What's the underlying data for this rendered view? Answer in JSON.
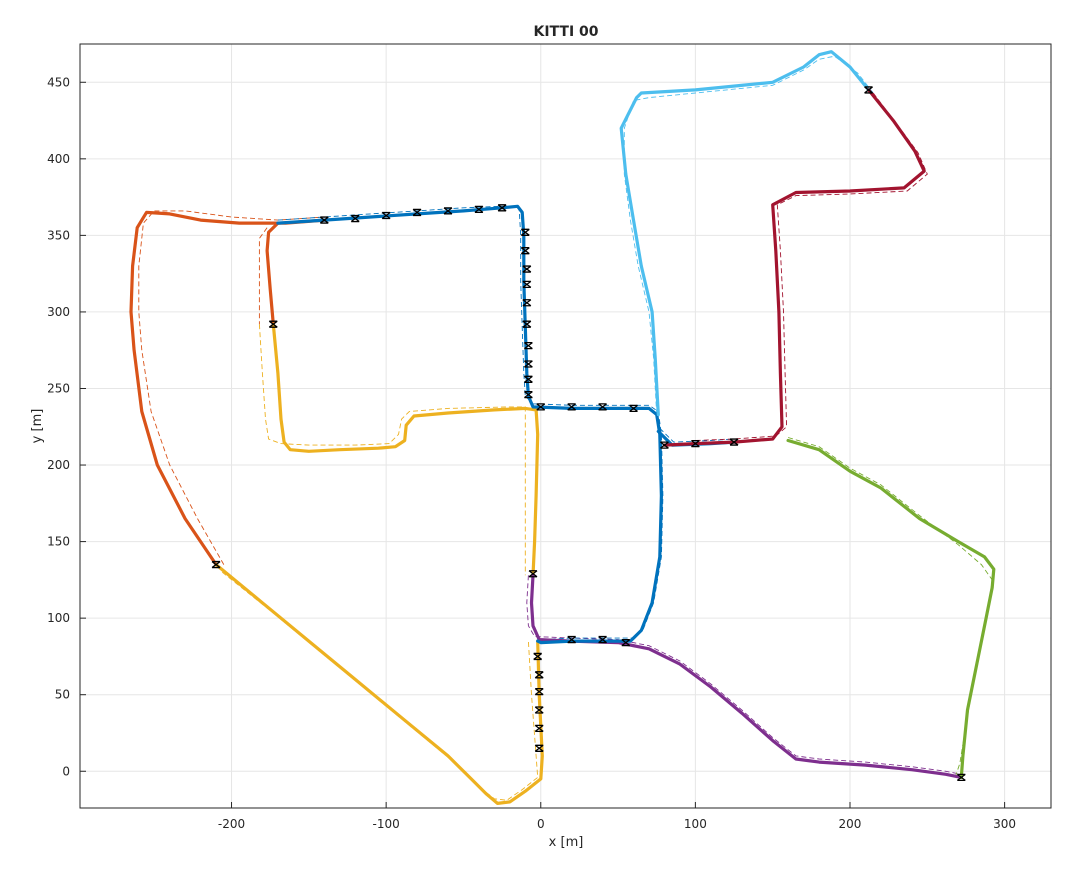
{
  "chart_data": {
    "type": "line",
    "title": "KITTI 00",
    "xlabel": "x [m]",
    "ylabel": "y [m]",
    "xlim": [
      -298,
      330
    ],
    "ylim": [
      -24,
      475
    ],
    "xticks": [
      -200,
      -100,
      0,
      100,
      200,
      300
    ],
    "yticks": [
      0,
      50,
      100,
      150,
      200,
      250,
      300,
      350,
      400,
      450
    ],
    "grid": true,
    "series": [
      {
        "color": "#D95319",
        "points": [
          [
            -210,
            135
          ],
          [
            -230,
            165
          ],
          [
            -248,
            200
          ],
          [
            -258,
            235
          ],
          [
            -263,
            275
          ],
          [
            -265,
            300
          ],
          [
            -264,
            330
          ],
          [
            -261,
            355
          ],
          [
            -255,
            365
          ],
          [
            -240,
            364
          ],
          [
            -220,
            360
          ],
          [
            -195,
            358
          ],
          [
            -165,
            358
          ],
          [
            -140,
            360
          ]
        ],
        "ref": [
          [
            -205,
            135
          ],
          [
            -222,
            165
          ],
          [
            -240,
            200
          ],
          [
            -252,
            235
          ],
          [
            -258,
            275
          ],
          [
            -260,
            300
          ],
          [
            -260,
            330
          ],
          [
            -257,
            358
          ],
          [
            -250,
            366
          ],
          [
            -230,
            366
          ],
          [
            -200,
            362
          ],
          [
            -170,
            360
          ],
          [
            -140,
            362
          ]
        ]
      },
      {
        "color": "#D95319",
        "points": [
          [
            -170,
            358
          ],
          [
            -176,
            352
          ],
          [
            -177,
            340
          ],
          [
            -175,
            315
          ],
          [
            -173,
            292
          ]
        ],
        "ref": [
          [
            -177,
            355
          ],
          [
            -182,
            348
          ],
          [
            -182,
            320
          ],
          [
            -182,
            292
          ]
        ]
      },
      {
        "color": "#EDB120",
        "points": [
          [
            -173,
            292
          ],
          [
            -170,
            260
          ],
          [
            -168,
            230
          ],
          [
            -166,
            215
          ],
          [
            -162,
            210
          ],
          [
            -150,
            209
          ],
          [
            -130,
            210
          ],
          [
            -105,
            211
          ],
          [
            -94,
            212
          ],
          [
            -88,
            216
          ],
          [
            -87,
            226
          ],
          [
            -82,
            232
          ],
          [
            -60,
            234
          ],
          [
            -30,
            236
          ],
          [
            -10,
            237
          ],
          [
            -3,
            236
          ],
          [
            -2,
            220
          ],
          [
            -3,
            180
          ],
          [
            -4,
            150
          ],
          [
            -5,
            128
          ]
        ],
        "ref": [
          [
            -182,
            292
          ],
          [
            -180,
            260
          ],
          [
            -178,
            230
          ],
          [
            -176,
            217
          ],
          [
            -168,
            214
          ],
          [
            -150,
            213
          ],
          [
            -120,
            213
          ],
          [
            -98,
            214
          ],
          [
            -92,
            220
          ],
          [
            -90,
            230
          ],
          [
            -85,
            235
          ],
          [
            -60,
            237
          ],
          [
            -20,
            238
          ],
          [
            -10,
            238
          ],
          [
            -10,
            180
          ],
          [
            -10,
            128
          ]
        ]
      },
      {
        "color": "#EDB120",
        "points": [
          [
            -210,
            135
          ],
          [
            -180,
            110
          ],
          [
            -150,
            85
          ],
          [
            -120,
            60
          ],
          [
            -90,
            35
          ],
          [
            -60,
            10
          ],
          [
            -45,
            -5
          ],
          [
            -35,
            -15
          ],
          [
            -28,
            -21
          ],
          [
            -20,
            -20
          ],
          [
            -10,
            -13
          ],
          [
            0,
            -5
          ],
          [
            1,
            10
          ],
          [
            -1,
            50
          ],
          [
            -2,
            85
          ]
        ],
        "ref": [
          [
            -206,
            130
          ],
          [
            -175,
            105
          ],
          [
            -145,
            80
          ],
          [
            -115,
            55
          ],
          [
            -85,
            30
          ],
          [
            -55,
            5
          ],
          [
            -40,
            -10
          ],
          [
            -30,
            -18
          ],
          [
            -22,
            -19
          ],
          [
            -12,
            -12
          ],
          [
            -2,
            -4
          ],
          [
            -3,
            10
          ],
          [
            -6,
            50
          ],
          [
            -8,
            85
          ]
        ]
      },
      {
        "color": "#7E2F8E",
        "points": [
          [
            -5,
            128
          ],
          [
            -6,
            110
          ],
          [
            -5,
            95
          ],
          [
            -1,
            86
          ],
          [
            20,
            85
          ],
          [
            50,
            84
          ],
          [
            70,
            80
          ],
          [
            90,
            70
          ],
          [
            110,
            55
          ],
          [
            130,
            38
          ],
          [
            150,
            20
          ],
          [
            165,
            8
          ],
          [
            180,
            6
          ],
          [
            210,
            4
          ],
          [
            240,
            1
          ],
          [
            262,
            -2
          ],
          [
            272,
            -4
          ]
        ],
        "ref": [
          [
            -8,
            128
          ],
          [
            -9,
            110
          ],
          [
            -8,
            95
          ],
          [
            -4,
            88
          ],
          [
            20,
            87
          ],
          [
            50,
            86
          ],
          [
            70,
            82
          ],
          [
            90,
            72
          ],
          [
            110,
            57
          ],
          [
            130,
            40
          ],
          [
            150,
            22
          ],
          [
            165,
            10
          ],
          [
            180,
            8
          ],
          [
            210,
            6
          ],
          [
            240,
            3
          ],
          [
            262,
            0
          ],
          [
            272,
            -2
          ]
        ]
      },
      {
        "color": "#0072BD",
        "points": [
          [
            -170,
            358
          ],
          [
            -140,
            360
          ],
          [
            -110,
            362
          ],
          [
            -80,
            364
          ],
          [
            -50,
            366
          ],
          [
            -25,
            368
          ],
          [
            -15,
            369
          ],
          [
            -12,
            365
          ],
          [
            -11,
            350
          ],
          [
            -11,
            320
          ],
          [
            -10,
            290
          ],
          [
            -9,
            260
          ],
          [
            -8,
            245
          ],
          [
            -5,
            238
          ],
          [
            20,
            237
          ],
          [
            50,
            237
          ],
          [
            70,
            237
          ],
          [
            75,
            233
          ],
          [
            77,
            220
          ],
          [
            78,
            180
          ],
          [
            77,
            140
          ],
          [
            72,
            110
          ],
          [
            65,
            92
          ],
          [
            58,
            85
          ],
          [
            40,
            85
          ],
          [
            20,
            85
          ],
          [
            0,
            84
          ],
          [
            -2,
            85
          ]
        ],
        "ref": [
          [
            -170,
            360
          ],
          [
            -140,
            362
          ],
          [
            -110,
            364
          ],
          [
            -80,
            366
          ],
          [
            -50,
            368
          ],
          [
            -25,
            369
          ],
          [
            -14,
            368
          ],
          [
            -13,
            350
          ],
          [
            -13,
            320
          ],
          [
            -12,
            290
          ],
          [
            -11,
            260
          ],
          [
            -10,
            245
          ],
          [
            -5,
            240
          ],
          [
            20,
            239
          ],
          [
            50,
            239
          ],
          [
            70,
            239
          ],
          [
            76,
            235
          ],
          [
            78,
            220
          ],
          [
            79,
            180
          ],
          [
            78,
            140
          ],
          [
            73,
            110
          ],
          [
            66,
            92
          ],
          [
            60,
            87
          ],
          [
            40,
            87
          ],
          [
            20,
            87
          ],
          [
            0,
            86
          ]
        ]
      },
      {
        "color": "#0072BD",
        "points": [
          [
            76,
            222
          ],
          [
            85,
            213
          ],
          [
            110,
            214
          ],
          [
            125,
            215
          ]
        ],
        "ref": [
          [
            77,
            224
          ],
          [
            86,
            215
          ],
          [
            110,
            216
          ],
          [
            125,
            217
          ]
        ]
      },
      {
        "color": "#4DBEEE",
        "points": [
          [
            76,
            233
          ],
          [
            74,
            270
          ],
          [
            72,
            300
          ],
          [
            65,
            330
          ],
          [
            60,
            360
          ],
          [
            55,
            390
          ],
          [
            52,
            420
          ],
          [
            62,
            440
          ],
          [
            65,
            443
          ],
          [
            100,
            445
          ],
          [
            150,
            450
          ],
          [
            170,
            460
          ],
          [
            180,
            468
          ],
          [
            188,
            470
          ],
          [
            200,
            460
          ],
          [
            212,
            445
          ]
        ],
        "ref": [
          [
            75,
            233
          ],
          [
            73,
            270
          ],
          [
            70,
            300
          ],
          [
            63,
            330
          ],
          [
            58,
            360
          ],
          [
            54,
            390
          ],
          [
            54,
            420
          ],
          [
            60,
            438
          ],
          [
            70,
            440
          ],
          [
            100,
            443
          ],
          [
            150,
            448
          ],
          [
            170,
            458
          ],
          [
            180,
            465
          ],
          [
            190,
            467
          ],
          [
            205,
            456
          ],
          [
            215,
            443
          ]
        ]
      },
      {
        "color": "#A2142F",
        "points": [
          [
            212,
            445
          ],
          [
            228,
            425
          ],
          [
            242,
            405
          ],
          [
            248,
            392
          ],
          [
            235,
            381
          ],
          [
            200,
            379
          ],
          [
            165,
            378
          ],
          [
            150,
            370
          ],
          [
            152,
            340
          ],
          [
            154,
            300
          ],
          [
            155,
            260
          ],
          [
            156,
            225
          ],
          [
            150,
            217
          ],
          [
            125,
            215
          ],
          [
            100,
            214
          ],
          [
            80,
            213
          ]
        ],
        "ref": [
          [
            215,
            443
          ],
          [
            230,
            423
          ],
          [
            244,
            404
          ],
          [
            250,
            390
          ],
          [
            237,
            379
          ],
          [
            200,
            377
          ],
          [
            165,
            376
          ],
          [
            153,
            370
          ],
          [
            155,
            340
          ],
          [
            157,
            300
          ],
          [
            158,
            260
          ],
          [
            159,
            225
          ],
          [
            152,
            219
          ],
          [
            125,
            217
          ],
          [
            100,
            216
          ]
        ]
      },
      {
        "color": "#77AC30",
        "points": [
          [
            160,
            216
          ],
          [
            180,
            210
          ],
          [
            200,
            196
          ],
          [
            220,
            185
          ],
          [
            245,
            165
          ],
          [
            270,
            150
          ],
          [
            287,
            140
          ],
          [
            293,
            132
          ],
          [
            292,
            120
          ],
          [
            288,
            100
          ],
          [
            282,
            70
          ],
          [
            276,
            40
          ],
          [
            273,
            10
          ],
          [
            272,
            -4
          ]
        ],
        "ref": [
          [
            160,
            218
          ],
          [
            180,
            212
          ],
          [
            200,
            198
          ],
          [
            220,
            187
          ],
          [
            245,
            167
          ],
          [
            270,
            148
          ],
          [
            285,
            135
          ],
          [
            292,
            125
          ],
          [
            290,
            110
          ],
          [
            286,
            90
          ],
          [
            280,
            60
          ],
          [
            275,
            30
          ],
          [
            271,
            5
          ],
          [
            268,
            -4
          ]
        ]
      }
    ],
    "markers": [
      [
        -140,
        360
      ],
      [
        -120,
        361
      ],
      [
        -100,
        363
      ],
      [
        -80,
        365
      ],
      [
        -60,
        366
      ],
      [
        -40,
        367
      ],
      [
        -25,
        368
      ],
      [
        -10,
        352
      ],
      [
        -10,
        340
      ],
      [
        -9,
        328
      ],
      [
        -9,
        318
      ],
      [
        -9,
        306
      ],
      [
        -9,
        292
      ],
      [
        -8,
        278
      ],
      [
        -8,
        266
      ],
      [
        -8,
        256
      ],
      [
        -8,
        246
      ],
      [
        0,
        238
      ],
      [
        20,
        238
      ],
      [
        40,
        238
      ],
      [
        60,
        237
      ],
      [
        80,
        213
      ],
      [
        100,
        214
      ],
      [
        125,
        215
      ],
      [
        -173,
        292
      ],
      [
        -210,
        135
      ],
      [
        -5,
        129
      ],
      [
        -2,
        75
      ],
      [
        -1,
        63
      ],
      [
        -1,
        52
      ],
      [
        -1,
        40
      ],
      [
        -1,
        28
      ],
      [
        -1,
        15
      ],
      [
        20,
        86
      ],
      [
        40,
        86
      ],
      [
        55,
        84
      ],
      [
        212,
        445
      ],
      [
        272,
        -4
      ]
    ]
  }
}
